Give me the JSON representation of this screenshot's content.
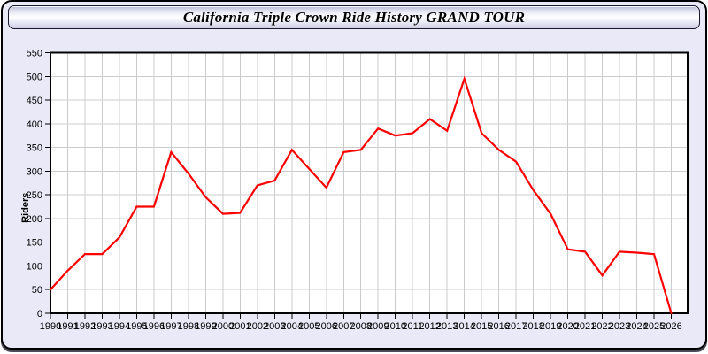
{
  "window": {
    "title": "California Triple Crown Ride History GRAND TOUR"
  },
  "chart_data": {
    "type": "line",
    "title": "California Triple Crown Ride History GRAND TOUR",
    "xlabel": "",
    "ylabel": "Riders",
    "x": [
      1990,
      1991,
      1992,
      1993,
      1994,
      1995,
      1996,
      1997,
      1998,
      1999,
      2000,
      2001,
      2002,
      2003,
      2004,
      2005,
      2006,
      2007,
      2008,
      2009,
      2010,
      2011,
      2012,
      2013,
      2014,
      2015,
      2016,
      2017,
      2018,
      2019,
      2020,
      2021,
      2022,
      2023,
      2024,
      2025,
      2026
    ],
    "values": [
      50,
      90,
      125,
      125,
      160,
      225,
      225,
      340,
      295,
      245,
      210,
      212,
      270,
      280,
      345,
      305,
      265,
      340,
      345,
      390,
      375,
      380,
      410,
      385,
      495,
      380,
      345,
      320,
      260,
      210,
      135,
      130,
      80,
      130,
      128,
      125,
      0
    ],
    "ylim": [
      0,
      550
    ],
    "ytick_step": 50,
    "grid": true,
    "legend": "none",
    "colors": {
      "line": "#ff0000",
      "grid": "#cccccc",
      "plot_background": "#ffffff",
      "page_background": "#e9e9f8",
      "axis": "#000000",
      "tick_label": "#000000"
    }
  }
}
